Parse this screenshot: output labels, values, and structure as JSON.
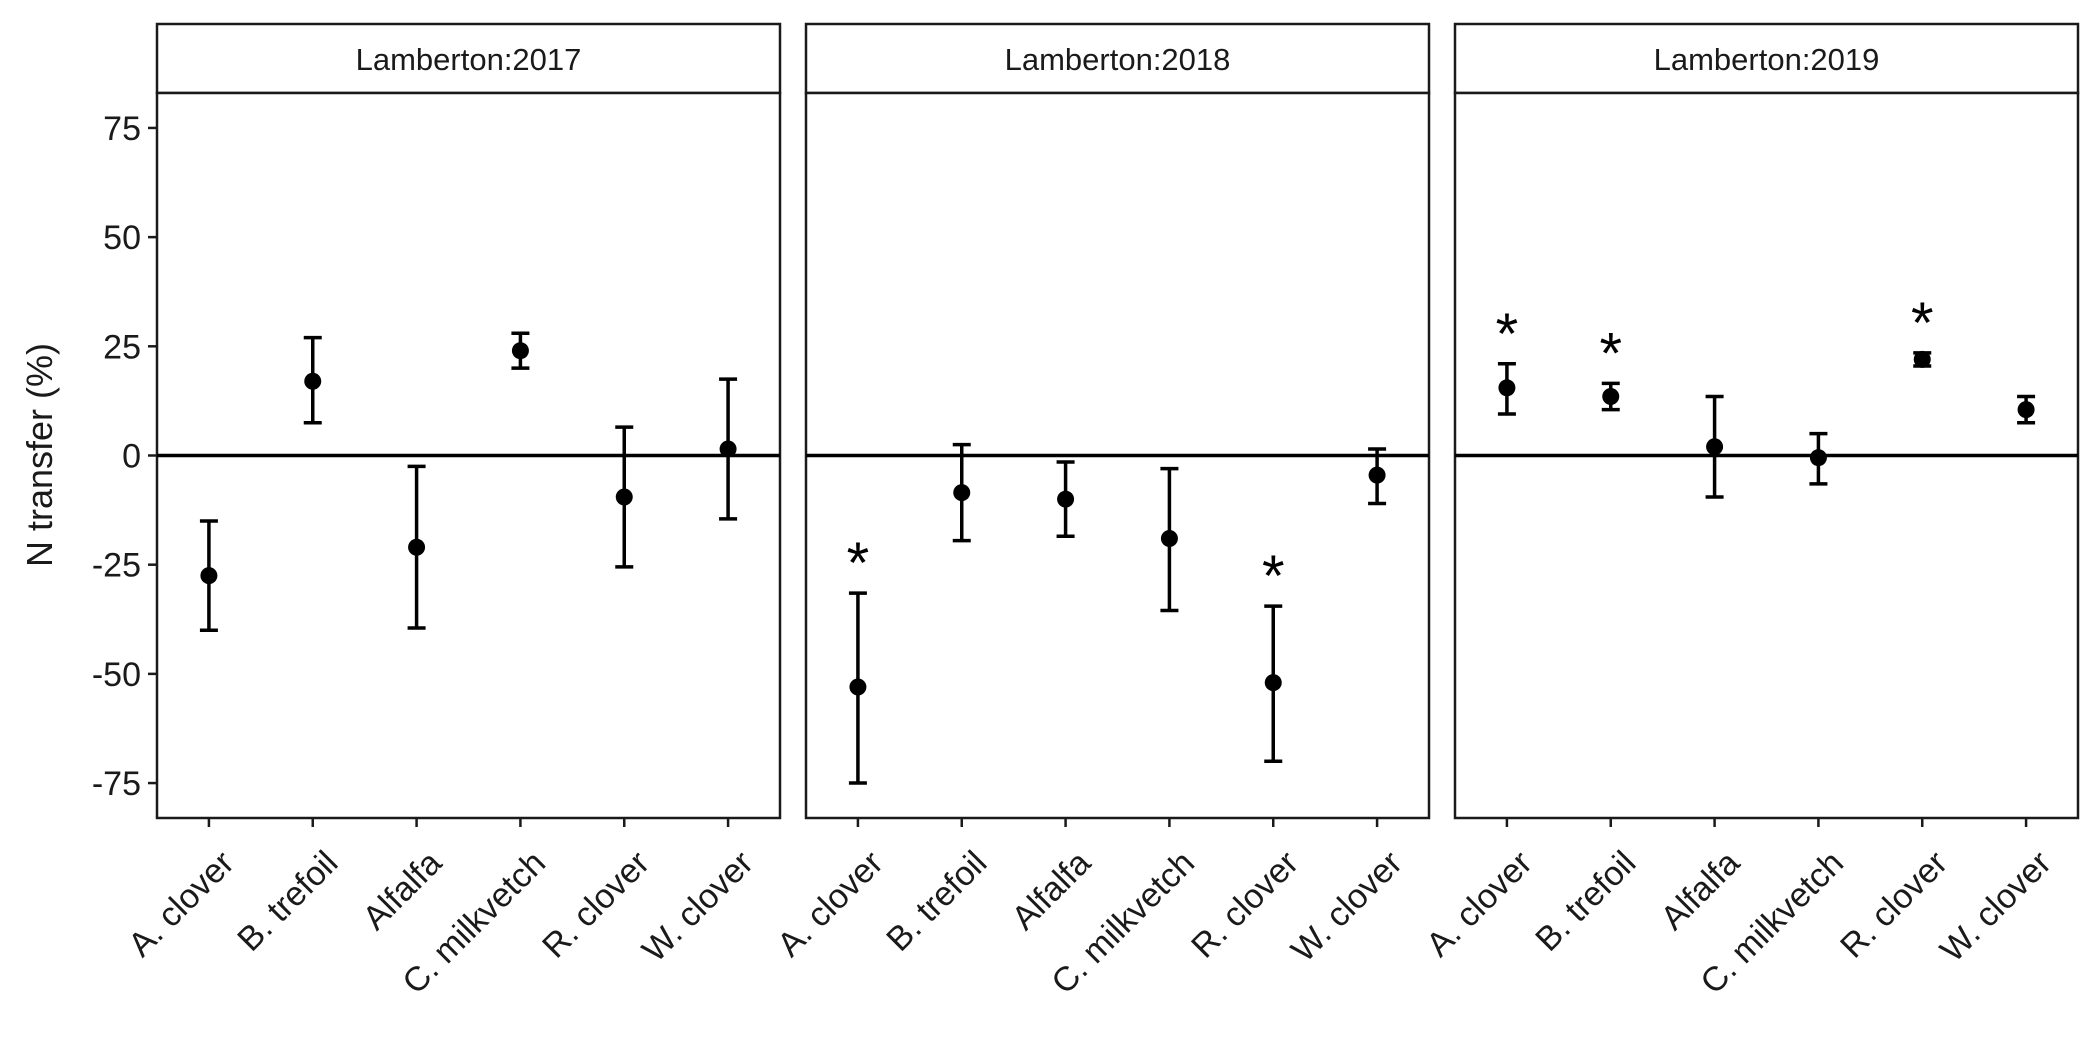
{
  "chart_data": {
    "type": "scatter",
    "subtype": "point-with-error-bars, faceted",
    "ylabel": "N transfer (%)",
    "xlabel": "",
    "ylim": [
      -83,
      83
    ],
    "yticks": [
      75,
      50,
      25,
      0,
      -25,
      -50,
      -75
    ],
    "ytick_labels": [
      "75",
      "50",
      "25",
      "0",
      "-25",
      "-50",
      "-75"
    ],
    "reference_line_y": 0,
    "grid": false,
    "legend": "none",
    "significance_marker": "*",
    "categories": [
      "A. clover",
      "B. trefoil",
      "Alfalfa",
      "C. milkvetch",
      "R. clover",
      "W. clover"
    ],
    "facets": [
      {
        "title": "Lamberton:2017",
        "points": [
          {
            "category": "A. clover",
            "mean": -27.5,
            "lower": -40,
            "upper": -15,
            "significant": false
          },
          {
            "category": "B. trefoil",
            "mean": 17,
            "lower": 7.5,
            "upper": 27,
            "significant": false
          },
          {
            "category": "Alfalfa",
            "mean": -21,
            "lower": -39.5,
            "upper": -2.5,
            "significant": false
          },
          {
            "category": "C. milkvetch",
            "mean": 24,
            "lower": 20,
            "upper": 28,
            "significant": false
          },
          {
            "category": "R. clover",
            "mean": -9.5,
            "lower": -25.5,
            "upper": 6.5,
            "significant": false
          },
          {
            "category": "W. clover",
            "mean": 1.5,
            "lower": -14.5,
            "upper": 17.5,
            "significant": false
          }
        ]
      },
      {
        "title": "Lamberton:2018",
        "points": [
          {
            "category": "A. clover",
            "mean": -53,
            "lower": -75,
            "upper": -31.5,
            "significant": true
          },
          {
            "category": "B. trefoil",
            "mean": -8.5,
            "lower": -19.5,
            "upper": 2.5,
            "significant": false
          },
          {
            "category": "Alfalfa",
            "mean": -10,
            "lower": -18.5,
            "upper": -1.5,
            "significant": false
          },
          {
            "category": "C. milkvetch",
            "mean": -19,
            "lower": -35.5,
            "upper": -3,
            "significant": false
          },
          {
            "category": "R. clover",
            "mean": -52,
            "lower": -70,
            "upper": -34.5,
            "significant": true
          },
          {
            "category": "W. clover",
            "mean": -4.5,
            "lower": -11,
            "upper": 1.5,
            "significant": false
          }
        ]
      },
      {
        "title": "Lamberton:2019",
        "points": [
          {
            "category": "A. clover",
            "mean": 15.5,
            "lower": 9.5,
            "upper": 21,
            "significant": true
          },
          {
            "category": "B. trefoil",
            "mean": 13.5,
            "lower": 10.5,
            "upper": 16.5,
            "significant": true
          },
          {
            "category": "Alfalfa",
            "mean": 2,
            "lower": -9.5,
            "upper": 13.5,
            "significant": false
          },
          {
            "category": "C. milkvetch",
            "mean": -0.5,
            "lower": -6.5,
            "upper": 5,
            "significant": false
          },
          {
            "category": "R. clover",
            "mean": 22,
            "lower": 20.5,
            "upper": 23.5,
            "significant": true
          },
          {
            "category": "W. clover",
            "mean": 10.5,
            "lower": 7.5,
            "upper": 13.5,
            "significant": false
          }
        ]
      }
    ],
    "colors": {
      "points": "#000000",
      "panel_border": "#1a1a1a",
      "strip_fill": "#ffffff",
      "background": "#ffffff"
    }
  }
}
